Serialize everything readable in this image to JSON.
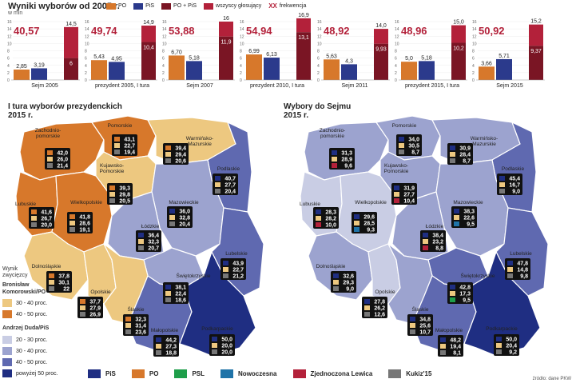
{
  "header": {
    "title": "Wyniki wyborów od 2005 r.",
    "unit": "w mln"
  },
  "top_legend": [
    {
      "label": "PO",
      "color": "#d7782b"
    },
    {
      "label": "PiS",
      "color": "#2b3a8c"
    },
    {
      "label": "PO + PiS",
      "color": "#7a1524"
    },
    {
      "label": "wszyscy głosujący",
      "color": "#b3213a"
    }
  ],
  "turnout_legend": {
    "mark": "XX",
    "label": "frekwencja"
  },
  "chart_data": {
    "type": "bar",
    "axis_ticks": [
      "16",
      "14",
      "12",
      "10",
      "8",
      "6",
      "4",
      "2",
      "0"
    ],
    "ylim": [
      0,
      16
    ],
    "elections": [
      {
        "name": "Sejm 2005",
        "turnout": "40,57",
        "po": 2.85,
        "pis": 3.19,
        "po_pis": 6.0,
        "all": 14.5,
        "po_label": "2,85",
        "pis_label": "3,19",
        "sum_label": "6",
        "all_label": "14,5"
      },
      {
        "name": "prezydent 2005, I tura",
        "turnout": "49,74",
        "po": 5.43,
        "pis": 4.95,
        "po_pis": 10.4,
        "all": 14.9,
        "po_label": "5,43",
        "pis_label": "4,95",
        "sum_label": "10,4",
        "all_label": "14,9"
      },
      {
        "name": "Sejm 2007",
        "turnout": "53,88",
        "po": 6.7,
        "pis": 5.18,
        "po_pis": 11.9,
        "all": 16.0,
        "po_label": "6,70",
        "pis_label": "5,18",
        "sum_label": "11,9",
        "all_label": "16"
      },
      {
        "name": "prezydent 2010, I tura",
        "turnout": "54,94",
        "po": 6.99,
        "pis": 6.13,
        "po_pis": 13.1,
        "all": 16.9,
        "po_label": "6,99",
        "pis_label": "6,13",
        "sum_label": "13,1",
        "all_label": "16,9"
      },
      {
        "name": "Sejm 2011",
        "turnout": "48,92",
        "po": 5.63,
        "pis": 4.3,
        "po_pis": 9.93,
        "all": 14.0,
        "po_label": "5,63",
        "pis_label": "4,3",
        "sum_label": "9,93",
        "all_label": "14,0"
      },
      {
        "name": "prezydent 2015, I tura",
        "turnout": "48,96",
        "po": 5.0,
        "pis": 5.18,
        "po_pis": 10.2,
        "all": 15.0,
        "po_label": "5,0",
        "pis_label": "5,18",
        "sum_label": "10,2",
        "all_label": "15,0"
      },
      {
        "name": "Sejm 2015",
        "turnout": "50,92",
        "po": 3.66,
        "pis": 5.71,
        "po_pis": 9.37,
        "all": 15.2,
        "po_label": "3,66",
        "pis_label": "5,71",
        "sum_label": "9,37",
        "all_label": "15,2"
      }
    ]
  },
  "map_left": {
    "title_line1": "I tura wyborów prezydenckich",
    "title_line2": "2015 r.",
    "regions": [
      {
        "name": "Zachodnio-\npomorskie",
        "values": [
          "42,0",
          "26,0",
          "21,4"
        ],
        "winner": "po"
      },
      {
        "name": "Pomorskie",
        "values": [
          "43,1",
          "22,7",
          "19,4"
        ],
        "winner": "po"
      },
      {
        "name": "Warmińsko-\nMazurskie",
        "values": [
          "39,4",
          "29,4",
          "20,6"
        ],
        "winner": "po"
      },
      {
        "name": "Kujawsko-\nPomorskie",
        "values": [
          "39,3",
          "29,8",
          "20,5"
        ],
        "winner": "po"
      },
      {
        "name": "Podlaskie",
        "values": [
          "40,7",
          "27,7",
          "20,4"
        ],
        "winner": "pis"
      },
      {
        "name": "Lubuskie",
        "values": [
          "41,6",
          "26,7",
          "20,0"
        ],
        "winner": "po"
      },
      {
        "name": "Wielkopolskie",
        "values": [
          "41,8",
          "28,6",
          "19,1"
        ],
        "winner": "po"
      },
      {
        "name": "Mazowieckie",
        "values": [
          "36,0",
          "32,8",
          "20,4"
        ],
        "winner": "pis"
      },
      {
        "name": "Łódzkie",
        "values": [
          "36,4",
          "32,3",
          "20,7"
        ],
        "winner": "pis"
      },
      {
        "name": "Lubelskie",
        "values": [
          "43,9",
          "22,7",
          "21,2"
        ],
        "winner": "pis"
      },
      {
        "name": "Dolnośląskie",
        "values": [
          "37,8",
          "30,1",
          "22"
        ],
        "winner": "po"
      },
      {
        "name": "Świętokrzyskie",
        "values": [
          "38,1",
          "22,4",
          "18,6"
        ],
        "winner": "pis"
      },
      {
        "name": "Opolskie",
        "values": [
          "37,7",
          "27,9",
          "26,9"
        ],
        "winner": "po"
      },
      {
        "name": "Śląskie",
        "values": [
          "32,3",
          "31,4",
          "23,6"
        ],
        "winner": "po"
      },
      {
        "name": "Małopolskie",
        "values": [
          "44,2",
          "27,3",
          "18,8"
        ],
        "winner": "pis"
      },
      {
        "name": "Podkarpackie",
        "values": [
          "50,0",
          "20,0",
          "20,0"
        ],
        "winner": "pis"
      }
    ]
  },
  "map_right": {
    "title_line1": "Wybory do Sejmu",
    "title_line2": "2015 r.",
    "regions": [
      {
        "name": "Zachodnio-\npomorskie",
        "values": [
          "31,3",
          "28,9",
          "9,6"
        ]
      },
      {
        "name": "Pomorskie",
        "values": [
          "34,0",
          "30,5",
          "8,7"
        ]
      },
      {
        "name": "Warmińsko-\nMazurskie",
        "values": [
          "30,9",
          "28,4",
          "8,7"
        ]
      },
      {
        "name": "Kujawsko-\nPomorskie",
        "values": [
          "31,9",
          "27,7",
          "10,4"
        ]
      },
      {
        "name": "Podlaskie",
        "values": [
          "45,4",
          "16,7",
          "9,0"
        ]
      },
      {
        "name": "Lubuskie",
        "values": [
          "28,3",
          "28,2",
          "10,0"
        ]
      },
      {
        "name": "Wielkopolskie",
        "values": [
          "29,6",
          "28,5",
          "9,3"
        ]
      },
      {
        "name": "Mazowieckie",
        "values": [
          "38,3",
          "22,6",
          "9,5"
        ]
      },
      {
        "name": "Łódzkie",
        "values": [
          "38,4",
          "23,2",
          "8,8"
        ]
      },
      {
        "name": "Lubelskie",
        "values": [
          "47,8",
          "14,8",
          "9,8"
        ]
      },
      {
        "name": "Dolnośląskie",
        "values": [
          "32,6",
          "29,3",
          "9,0"
        ]
      },
      {
        "name": "Świętokrzyskie",
        "values": [
          "42,8",
          "17,3",
          "9,5"
        ]
      },
      {
        "name": "Opolskie",
        "values": [
          "27,8",
          "26,2",
          "12,6"
        ]
      },
      {
        "name": "Śląskie",
        "values": [
          "34,8",
          "25,6",
          "10,7"
        ]
      },
      {
        "name": "Małopolskie",
        "values": [
          "48,2",
          "19,4",
          "8,1"
        ]
      },
      {
        "name": "Podkarpackie",
        "values": [
          "50,0",
          "20,4",
          "9,2"
        ]
      }
    ]
  },
  "side_legend": {
    "winner_label": "Wynik\nzwycięzcy",
    "komorowski": "Bronisław\nKomorowski/PO",
    "ko_levels": [
      "30 - 40 proc.",
      "40 - 50 proc."
    ],
    "duda": "Andrzej Duda/PiS",
    "du_levels": [
      "20 - 30 proc.",
      "30 - 40 proc.",
      "40 - 50 proc.",
      "powyżej 50 proc."
    ]
  },
  "bottom_legend": [
    {
      "label": "PiS",
      "color": "#1f2e82"
    },
    {
      "label": "PO",
      "color": "#d7782b"
    },
    {
      "label": "PSL",
      "color": "#1e9e4a"
    },
    {
      "label": "Nowoczesna",
      "color": "#1f73a8"
    },
    {
      "label": "Zjednoczona Lewica",
      "color": "#b3213a"
    },
    {
      "label": "Kukiz'15",
      "color": "#777777"
    }
  ],
  "source": "źródło: dane PKW",
  "colors": {
    "po": "#d7782b",
    "pis": "#2b3a8c",
    "sum": "#7a1524",
    "all": "#b3213a"
  }
}
